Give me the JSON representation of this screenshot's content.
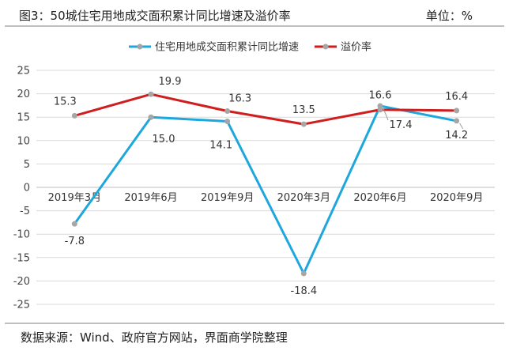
{
  "header": {
    "title": "图3：50城住宅用地成交面积累计同比增速及溢价率",
    "unit": "单位：%"
  },
  "footer": {
    "source": "数据来源：Wind、政府官方网站，界面商学院整理"
  },
  "colors": {
    "growth": "#1ea7dc",
    "premium": "#d01e1e",
    "marker": "#a6a6a6",
    "grid": "#d9d9d9",
    "axis": "#bfbfbf"
  },
  "chart_data": {
    "type": "line",
    "categories": [
      "2019年3月",
      "2019年6月",
      "2019年9月",
      "2020年3月",
      "2020年6月",
      "2020年9月"
    ],
    "series": [
      {
        "name": "住宅用地成交面积累计同比增速",
        "values": [
          -7.8,
          15.0,
          14.1,
          -18.4,
          17.4,
          14.2
        ],
        "labels": [
          "-7.8",
          "15.0",
          "14.1",
          "-18.4",
          "17.4",
          "14.2"
        ]
      },
      {
        "name": "溢价率",
        "values": [
          15.3,
          19.9,
          16.3,
          13.5,
          16.6,
          16.4
        ],
        "labels": [
          "15.3",
          "19.9",
          "16.3",
          "13.5",
          "16.6",
          "16.4"
        ]
      }
    ],
    "ylim": [
      -25,
      25
    ],
    "yticks": [
      -25,
      -20,
      -15,
      -10,
      -5,
      0,
      5,
      10,
      15,
      20,
      25
    ],
    "ytick_labels": [
      "-25",
      "-20",
      "-15",
      "-10",
      "-5",
      "0",
      "5",
      "10",
      "15",
      "20",
      "25"
    ],
    "grid": true,
    "legend": "top-center"
  }
}
